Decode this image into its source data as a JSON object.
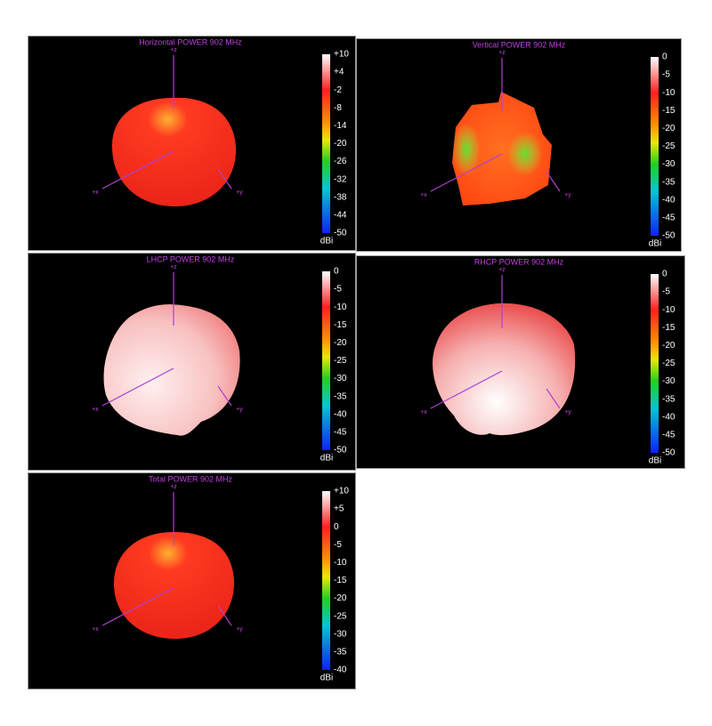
{
  "panels": [
    {
      "title": "Horizontal POWER 902  MHz",
      "axes": {
        "z": "+z",
        "x": "+x",
        "y": "+y"
      },
      "scale": [
        "+10",
        "+4",
        "-2",
        "-8",
        "-14",
        "-20",
        "-26",
        "-32",
        "-38",
        "-44",
        "-50"
      ],
      "unit": "dBi"
    },
    {
      "title": "Vertical POWER 902  MHz",
      "axes": {
        "z": "+z",
        "x": "+x",
        "y": "+y"
      },
      "scale": [
        "0",
        "-5",
        "-10",
        "-15",
        "-20",
        "-25",
        "-30",
        "-35",
        "-40",
        "-45",
        "-50"
      ],
      "unit": "dBi"
    },
    {
      "title": "LHCP POWER 902  MHz",
      "axes": {
        "z": "+z",
        "x": "+x",
        "y": "+y"
      },
      "scale": [
        "0",
        "-5",
        "-10",
        "-15",
        "-20",
        "-25",
        "-30",
        "-35",
        "-40",
        "-45",
        "-50"
      ],
      "unit": "dBi"
    },
    {
      "title": "RHCP POWER 902  MHz",
      "axes": {
        "z": "+z",
        "x": "+x",
        "y": "+y"
      },
      "scale": [
        "0",
        "-5",
        "-10",
        "-15",
        "-20",
        "-25",
        "-30",
        "-35",
        "-40",
        "-45",
        "-50"
      ],
      "unit": "dBi"
    },
    {
      "title": "Total POWER 902  MHz",
      "axes": {
        "z": "+z",
        "x": "+x",
        "y": "+y"
      },
      "scale": [
        "+10",
        "+5",
        "0",
        "-5",
        "-10",
        "-15",
        "-20",
        "-25",
        "-30",
        "-35",
        "-40"
      ],
      "unit": "dBi"
    }
  ]
}
